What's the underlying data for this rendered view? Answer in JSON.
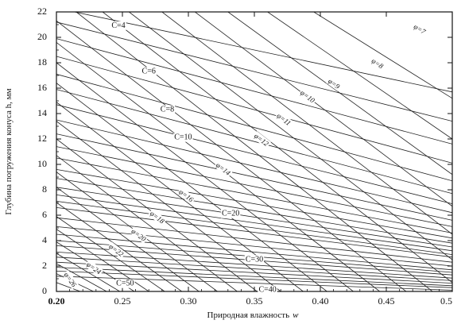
{
  "chart_data": {
    "type": "line",
    "title": "",
    "xlabel": "Природная влажность",
    "xlabel_symbol": "w",
    "ylabel": "Глубина погружения конуса h, мм",
    "xlim": [
      0.2,
      0.5
    ],
    "ylim": [
      0,
      22
    ],
    "x_ticks": [
      {
        "value": 0.2,
        "label": "0.20"
      },
      {
        "value": 0.25,
        "label": "0.25"
      },
      {
        "value": 0.3,
        "label": "0.30"
      },
      {
        "value": 0.35,
        "label": "0.35"
      },
      {
        "value": 0.4,
        "label": "0.40"
      },
      {
        "value": 0.45,
        "label": "0.45"
      },
      {
        "value": 0.5,
        "label": "0.5"
      }
    ],
    "y_ticks": [
      {
        "value": 0,
        "label": "0"
      },
      {
        "value": 2,
        "label": "2"
      },
      {
        "value": 4,
        "label": "4"
      },
      {
        "value": 6,
        "label": "6"
      },
      {
        "value": 8,
        "label": "8"
      },
      {
        "value": 10,
        "label": "10"
      },
      {
        "value": 12,
        "label": "12"
      },
      {
        "value": 14,
        "label": "14"
      },
      {
        "value": 16,
        "label": "16"
      },
      {
        "value": 18,
        "label": "18"
      },
      {
        "value": 20,
        "label": "20"
      },
      {
        "value": 22,
        "label": "22"
      }
    ],
    "grid": false,
    "c_series": [
      {
        "name": "C=4",
        "points": [
          [
            0.2,
            22.3
          ],
          [
            0.5,
            15.7
          ]
        ],
        "label": "C=4",
        "label_at": [
          0.247,
          20.9
        ]
      },
      {
        "name": "C=5",
        "points": [
          [
            0.2,
            21.2
          ],
          [
            0.5,
            13.4
          ]
        ]
      },
      {
        "name": "C=6",
        "points": [
          [
            0.2,
            19.9
          ],
          [
            0.5,
            11.6
          ]
        ],
        "label": "C=6",
        "label_at": [
          0.27,
          17.3
        ]
      },
      {
        "name": "C=7",
        "points": [
          [
            0.2,
            18.5
          ],
          [
            0.5,
            10.1
          ]
        ]
      },
      {
        "name": "C=8",
        "points": [
          [
            0.2,
            17.1
          ],
          [
            0.5,
            8.7
          ]
        ],
        "label": "C=8",
        "label_at": [
          0.284,
          14.3
        ]
      },
      {
        "name": "C=9",
        "points": [
          [
            0.2,
            15.9
          ],
          [
            0.5,
            7.7
          ]
        ]
      },
      {
        "name": "C=10",
        "points": [
          [
            0.2,
            14.7
          ],
          [
            0.5,
            6.9
          ]
        ],
        "label": "C=10",
        "label_at": [
          0.296,
          12.1
        ]
      },
      {
        "name": "C=11",
        "points": [
          [
            0.2,
            13.5
          ],
          [
            0.5,
            6.2
          ]
        ]
      },
      {
        "name": "C=12",
        "points": [
          [
            0.2,
            12.4
          ],
          [
            0.5,
            5.6
          ]
        ]
      },
      {
        "name": "C=13",
        "points": [
          [
            0.2,
            11.4
          ],
          [
            0.5,
            5.1
          ]
        ]
      },
      {
        "name": "C=14",
        "points": [
          [
            0.2,
            10.5
          ],
          [
            0.5,
            4.6
          ]
        ]
      },
      {
        "name": "C=15",
        "points": [
          [
            0.2,
            9.6
          ],
          [
            0.5,
            4.2
          ]
        ]
      },
      {
        "name": "C=16",
        "points": [
          [
            0.2,
            8.9
          ],
          [
            0.5,
            3.8
          ]
        ]
      },
      {
        "name": "C=17",
        "points": [
          [
            0.2,
            8.2
          ],
          [
            0.5,
            3.5
          ]
        ]
      },
      {
        "name": "C=18",
        "points": [
          [
            0.2,
            7.6
          ],
          [
            0.5,
            3.2
          ]
        ]
      },
      {
        "name": "C=19",
        "points": [
          [
            0.2,
            7.1
          ],
          [
            0.5,
            2.9
          ]
        ]
      },
      {
        "name": "C=20",
        "points": [
          [
            0.2,
            6.6
          ],
          [
            0.5,
            2.7
          ]
        ],
        "label": "C=20",
        "label_at": [
          0.332,
          6.1
        ]
      },
      {
        "name": "C=22",
        "points": [
          [
            0.2,
            5.8
          ],
          [
            0.5,
            2.3
          ]
        ]
      },
      {
        "name": "C=24",
        "points": [
          [
            0.2,
            5.1
          ],
          [
            0.5,
            2.0
          ]
        ]
      },
      {
        "name": "C=26",
        "points": [
          [
            0.2,
            4.5
          ],
          [
            0.5,
            1.7
          ]
        ]
      },
      {
        "name": "C=28",
        "points": [
          [
            0.2,
            4.0
          ],
          [
            0.5,
            1.5
          ]
        ]
      },
      {
        "name": "C=30",
        "points": [
          [
            0.2,
            3.6
          ],
          [
            0.5,
            1.3
          ]
        ],
        "label": "C=30",
        "label_at": [
          0.35,
          2.5
        ]
      },
      {
        "name": "C=33",
        "points": [
          [
            0.2,
            3.1
          ],
          [
            0.5,
            1.05
          ]
        ]
      },
      {
        "name": "C=36",
        "points": [
          [
            0.2,
            2.7
          ],
          [
            0.5,
            0.85
          ]
        ]
      },
      {
        "name": "C=40",
        "points": [
          [
            0.2,
            2.3
          ],
          [
            0.5,
            0.65
          ]
        ],
        "label": "C=40",
        "label_at": [
          0.36,
          0.1
        ]
      },
      {
        "name": "C=45",
        "points": [
          [
            0.2,
            1.9
          ],
          [
            0.5,
            0.45
          ]
        ]
      },
      {
        "name": "C=50",
        "points": [
          [
            0.2,
            1.6
          ],
          [
            0.5,
            0.3
          ]
        ],
        "label": "C=50",
        "label_at": [
          0.252,
          0.6
        ]
      },
      {
        "name": "C=60",
        "points": [
          [
            0.2,
            1.2
          ],
          [
            0.5,
            0.1
          ]
        ]
      }
    ],
    "phi_series": [
      {
        "name": "φ=7",
        "points": [
          [
            0.395,
            22
          ],
          [
            0.5,
            15.2
          ]
        ],
        "label": "φ=7",
        "label_at": [
          0.475,
          20.6
        ]
      },
      {
        "name": "φ=8",
        "points": [
          [
            0.36,
            22
          ],
          [
            0.5,
            12.0
          ]
        ],
        "label": "φ=8",
        "label_at": [
          0.443,
          17.9
        ]
      },
      {
        "name": "φ=9",
        "points": [
          [
            0.33,
            22
          ],
          [
            0.5,
            9.2
          ]
        ],
        "label": "φ=9",
        "label_at": [
          0.41,
          16.3
        ]
      },
      {
        "name": "φ=10",
        "points": [
          [
            0.305,
            22
          ],
          [
            0.5,
            6.7
          ]
        ],
        "label": "φ=10",
        "label_at": [
          0.39,
          15.3
        ]
      },
      {
        "name": "φ=11",
        "points": [
          [
            0.28,
            22
          ],
          [
            0.5,
            4.5
          ]
        ],
        "label": "φ=11",
        "label_at": [
          0.372,
          13.5
        ]
      },
      {
        "name": "φ=12",
        "points": [
          [
            0.255,
            22
          ],
          [
            0.5,
            2.5
          ]
        ],
        "label": "φ=12",
        "label_at": [
          0.355,
          11.9
        ]
      },
      {
        "name": "φ=13",
        "points": [
          [
            0.235,
            22
          ],
          [
            0.5,
            0.7
          ]
        ]
      },
      {
        "name": "φ=14",
        "points": [
          [
            0.215,
            22
          ],
          [
            0.485,
            0
          ]
        ],
        "label": "φ=14",
        "label_at": [
          0.326,
          9.6
        ]
      },
      {
        "name": "φ=15",
        "points": [
          [
            0.2,
            21.3
          ],
          [
            0.465,
            0
          ]
        ]
      },
      {
        "name": "φ=16",
        "points": [
          [
            0.2,
            19.6
          ],
          [
            0.445,
            0
          ]
        ],
        "label": "φ=16",
        "label_at": [
          0.298,
          7.5
        ]
      },
      {
        "name": "φ=17",
        "points": [
          [
            0.2,
            18.0
          ],
          [
            0.425,
            0
          ]
        ]
      },
      {
        "name": "φ=18",
        "points": [
          [
            0.2,
            16.4
          ],
          [
            0.405,
            0
          ]
        ],
        "label": "φ=18",
        "label_at": [
          0.276,
          5.8
        ]
      },
      {
        "name": "φ=19",
        "points": [
          [
            0.2,
            14.9
          ],
          [
            0.387,
            0
          ]
        ]
      },
      {
        "name": "φ=20",
        "points": [
          [
            0.2,
            13.4
          ],
          [
            0.37,
            0
          ]
        ],
        "label": "φ=20",
        "label_at": [
          0.262,
          4.4
        ]
      },
      {
        "name": "φ=21",
        "points": [
          [
            0.2,
            12.0
          ],
          [
            0.352,
            0
          ]
        ]
      },
      {
        "name": "φ=22",
        "points": [
          [
            0.2,
            10.7
          ],
          [
            0.337,
            0
          ]
        ],
        "label": "φ=22",
        "label_at": [
          0.245,
          3.2
        ]
      },
      {
        "name": "φ=23",
        "points": [
          [
            0.2,
            9.4
          ],
          [
            0.322,
            0
          ]
        ]
      },
      {
        "name": "φ=24",
        "points": [
          [
            0.2,
            8.2
          ],
          [
            0.308,
            0
          ]
        ],
        "label": "φ=24",
        "label_at": [
          0.228,
          1.8
        ]
      },
      {
        "name": "φ=25",
        "points": [
          [
            0.2,
            7.0
          ],
          [
            0.295,
            0
          ]
        ]
      },
      {
        "name": "φ=26",
        "points": [
          [
            0.2,
            5.9
          ],
          [
            0.282,
            0
          ]
        ]
      },
      {
        "name": "φ=27",
        "points": [
          [
            0.2,
            4.9
          ],
          [
            0.27,
            0
          ]
        ]
      },
      {
        "name": "φ=28",
        "points": [
          [
            0.2,
            3.9
          ],
          [
            0.259,
            0
          ]
        ]
      },
      {
        "name": "φ=29",
        "points": [
          [
            0.2,
            3.0
          ],
          [
            0.248,
            0
          ]
        ]
      },
      {
        "name": "φ=30",
        "points": [
          [
            0.2,
            2.2
          ],
          [
            0.238,
            0
          ]
        ]
      },
      {
        "name": "φ=31",
        "points": [
          [
            0.2,
            1.4
          ],
          [
            0.228,
            0
          ]
        ]
      },
      {
        "name": "φ=32",
        "points": [
          [
            0.2,
            0.7
          ],
          [
            0.218,
            0
          ]
        ]
      }
    ],
    "extra_labels": [
      {
        "text": "φ=26",
        "at": [
          0.21,
          0.9
        ]
      }
    ]
  }
}
